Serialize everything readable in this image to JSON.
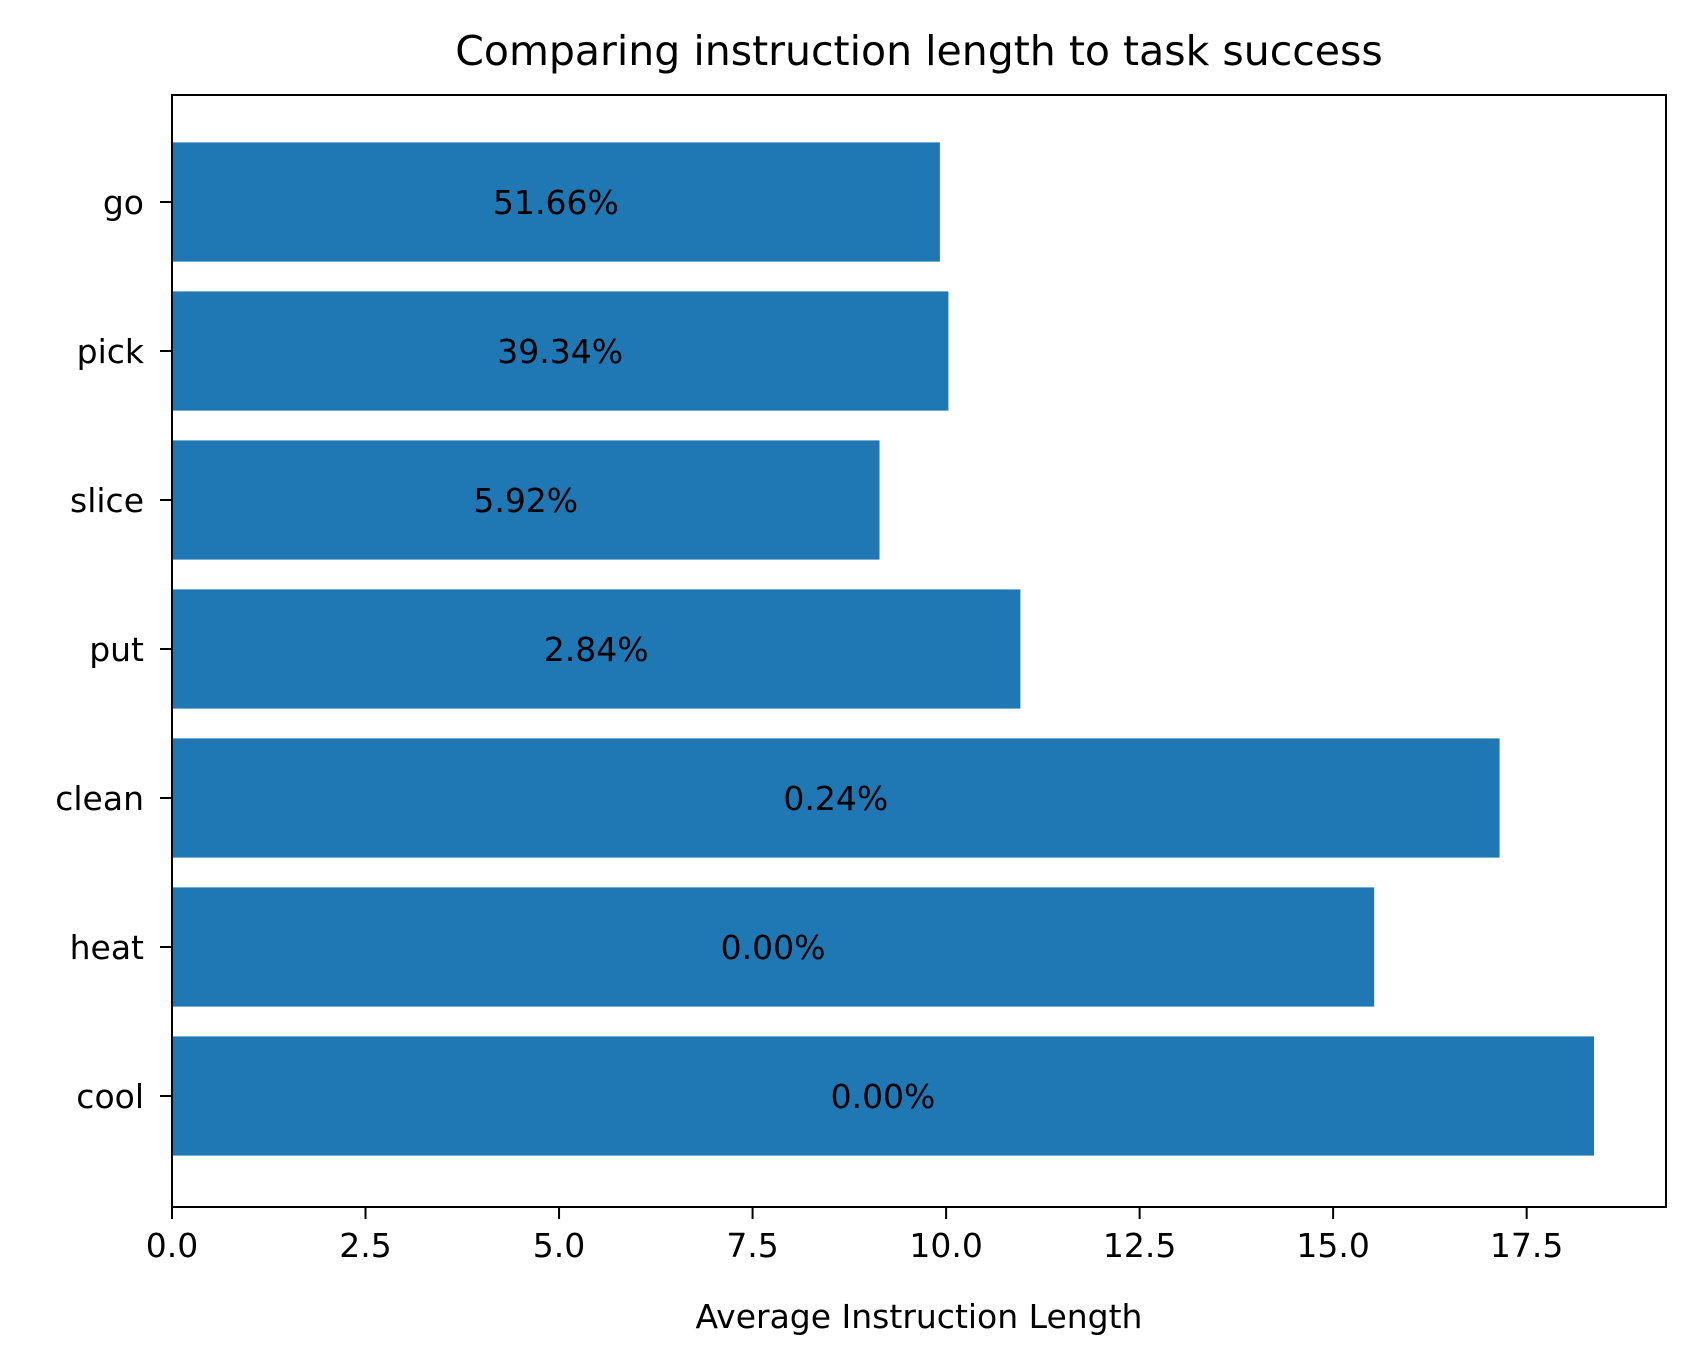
{
  "chart_data": {
    "type": "bar",
    "orientation": "horizontal",
    "title": "Comparing instruction length to task success",
    "xlabel": "Average Instruction Length",
    "ylabel": "",
    "xlim": [
      0,
      19.3
    ],
    "xticks": [
      "0.0",
      "2.5",
      "5.0",
      "7.5",
      "10.0",
      "12.5",
      "15.0",
      "17.5"
    ],
    "xtick_values": [
      0,
      2.5,
      5,
      7.5,
      10,
      12.5,
      15,
      17.5
    ],
    "categories": [
      "go",
      "pick",
      "slice",
      "put",
      "clean",
      "heat",
      "cool"
    ],
    "values": [
      9.92,
      10.03,
      9.14,
      10.96,
      17.15,
      15.53,
      18.37
    ],
    "labels": [
      "51.66%",
      "39.34%",
      "5.92%",
      "2.84%",
      "0.24%",
      "0.00%",
      "0.00%"
    ],
    "bar_color": "#1f77b4",
    "grid": false,
    "legend": "none"
  }
}
